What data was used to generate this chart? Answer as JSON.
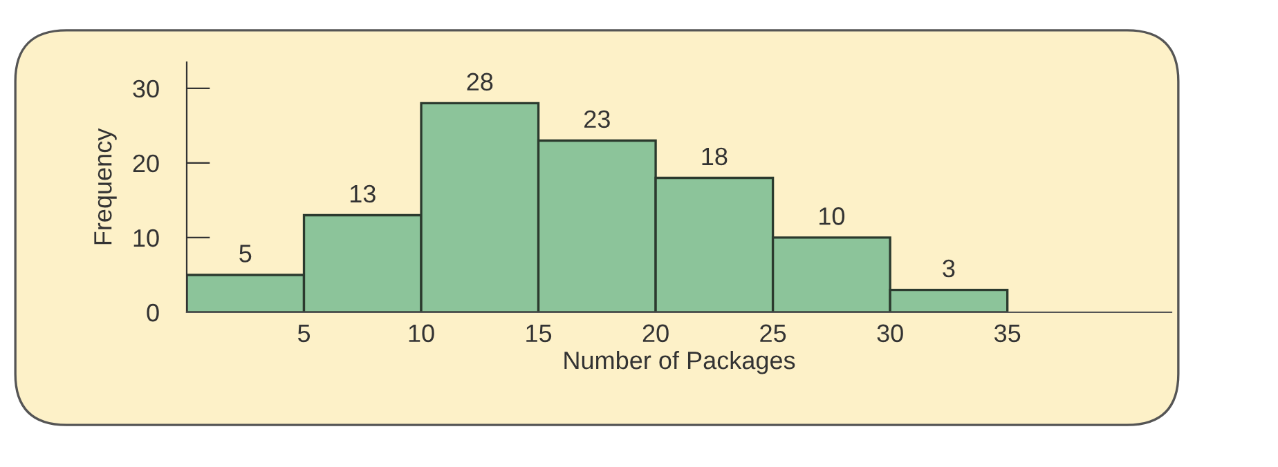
{
  "chart_data": {
    "type": "histogram",
    "xlabel": "Number of Packages",
    "ylabel": "Frequency",
    "bins": [
      0,
      5,
      10,
      15,
      20,
      25,
      30,
      35
    ],
    "values": [
      5,
      13,
      28,
      23,
      18,
      10,
      3
    ],
    "color": "#8cc49a",
    "xlim": [
      0,
      42
    ],
    "xticks": [
      5,
      10,
      15,
      20,
      25,
      30,
      35
    ],
    "ylim": [
      0,
      33.5
    ],
    "yticks": [
      0,
      10,
      20,
      30
    ],
    "data_labels": true
  }
}
